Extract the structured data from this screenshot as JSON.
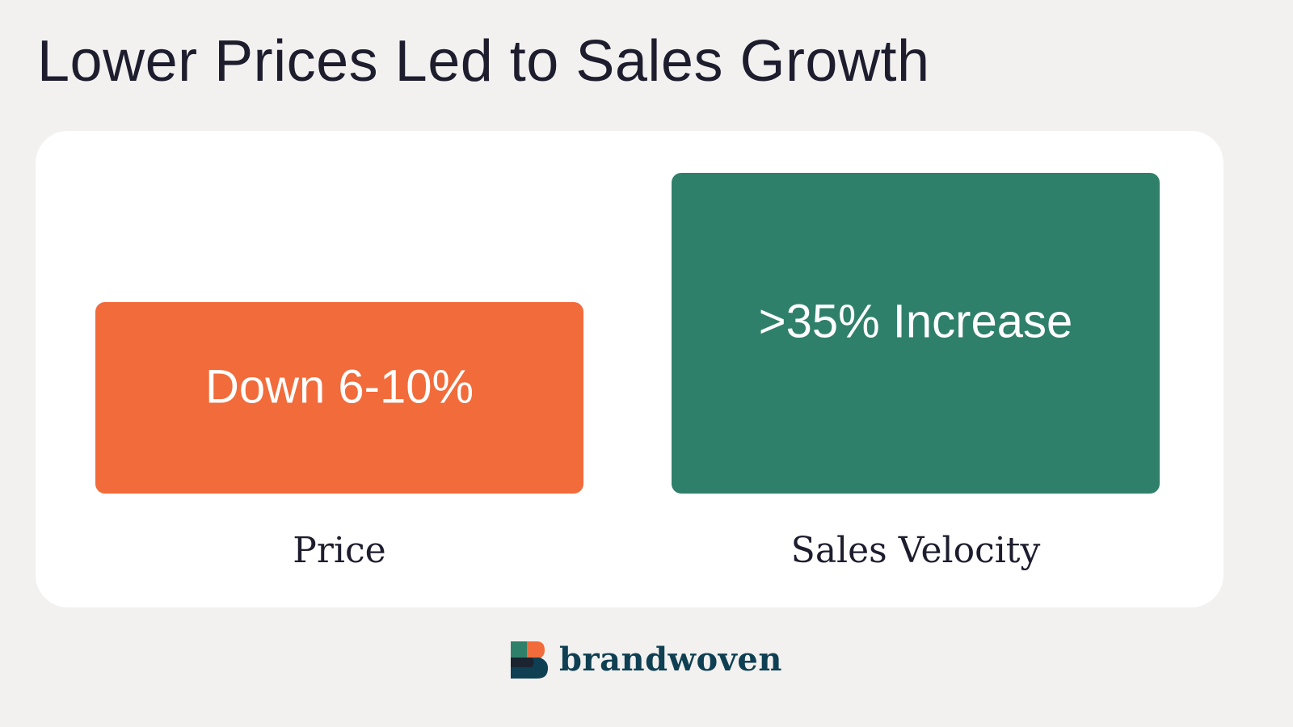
{
  "title": "Lower Prices Led to Sales Growth",
  "chart_data": {
    "type": "bar",
    "categories": [
      "Price",
      "Sales Velocity"
    ],
    "bar_labels": [
      "Down 6-10%",
      ">35% Increase"
    ],
    "colors": [
      "#f26b3a",
      "#2f806a"
    ],
    "grid": false,
    "legend": "none"
  },
  "brand": {
    "name": "brandwoven",
    "colors": {
      "dark": "#0f3f52",
      "orange": "#f26b3a",
      "green": "#2f806a"
    }
  }
}
